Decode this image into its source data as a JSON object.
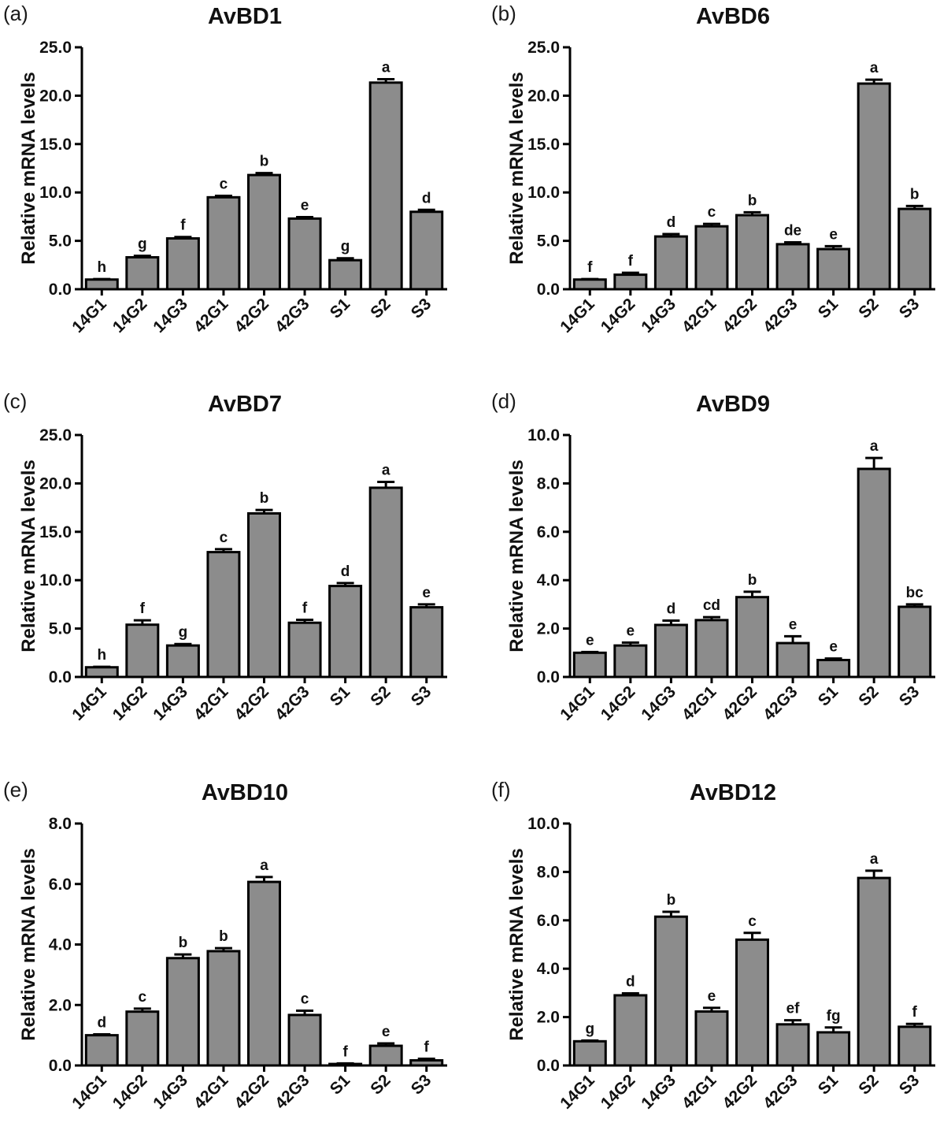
{
  "chart_data": [
    {
      "panel": "(a)",
      "type": "bar",
      "title": "AvBD1",
      "ylabel": "Relative mRNA levels",
      "xlabel": "",
      "categories": [
        "14G1",
        "14G2",
        "14G3",
        "42G1",
        "42G2",
        "42G3",
        "S1",
        "S2",
        "S3"
      ],
      "values": [
        1.0,
        3.3,
        5.25,
        9.5,
        11.8,
        7.3,
        3.0,
        21.35,
        8.0
      ],
      "errors": [
        0.05,
        0.15,
        0.15,
        0.15,
        0.2,
        0.15,
        0.2,
        0.35,
        0.2
      ],
      "labels": [
        "h",
        "g",
        "f",
        "c",
        "b",
        "e",
        "g",
        "a",
        "d"
      ],
      "ylim": [
        0,
        25
      ],
      "yticks": [
        "0.0",
        "5.0",
        "10.0",
        "15.0",
        "20.0",
        "25.0"
      ],
      "bar_color": "#8c8c8c"
    },
    {
      "panel": "(b)",
      "type": "bar",
      "title": "AvBD6",
      "ylabel": "Relative mRNA levels",
      "xlabel": "",
      "categories": [
        "14G1",
        "14G2",
        "14G3",
        "42G1",
        "42G2",
        "42G3",
        "S1",
        "S2",
        "S3"
      ],
      "values": [
        1.0,
        1.5,
        5.45,
        6.5,
        7.65,
        4.65,
        4.15,
        21.25,
        8.3
      ],
      "errors": [
        0.05,
        0.2,
        0.25,
        0.25,
        0.3,
        0.2,
        0.3,
        0.4,
        0.3
      ],
      "labels": [
        "f",
        "f",
        "d",
        "c",
        "b",
        "de",
        "e",
        "a",
        "b"
      ],
      "ylim": [
        0,
        25
      ],
      "yticks": [
        "0.0",
        "5.0",
        "10.0",
        "15.0",
        "20.0",
        "25.0"
      ],
      "bar_color": "#8c8c8c"
    },
    {
      "panel": "(c)",
      "type": "bar",
      "title": "AvBD7",
      "ylabel": "Relative mRNA levels",
      "xlabel": "",
      "categories": [
        "14G1",
        "14G2",
        "14G3",
        "42G1",
        "42G2",
        "42G3",
        "S1",
        "S2",
        "S3"
      ],
      "values": [
        1.0,
        5.4,
        3.25,
        12.9,
        16.9,
        5.6,
        9.4,
        19.55,
        7.2
      ],
      "errors": [
        0.05,
        0.45,
        0.15,
        0.3,
        0.35,
        0.3,
        0.3,
        0.6,
        0.3
      ],
      "labels": [
        "h",
        "f",
        "g",
        "c",
        "b",
        "f",
        "d",
        "a",
        "e"
      ],
      "ylim": [
        0,
        25
      ],
      "yticks": [
        "0.0",
        "5.0",
        "10.0",
        "15.0",
        "20.0",
        "25.0"
      ],
      "bar_color": "#8c8c8c"
    },
    {
      "panel": "(d)",
      "type": "bar",
      "title": "AvBD9",
      "ylabel": "Relative mRNA levels",
      "xlabel": "",
      "categories": [
        "14G1",
        "14G2",
        "14G3",
        "42G1",
        "42G2",
        "42G3",
        "S1",
        "S2",
        "S3"
      ],
      "values": [
        1.0,
        1.3,
        2.15,
        2.35,
        3.3,
        1.4,
        0.7,
        8.6,
        2.9
      ],
      "errors": [
        0.03,
        0.12,
        0.18,
        0.12,
        0.22,
        0.28,
        0.06,
        0.45,
        0.1
      ],
      "labels": [
        "e",
        "e",
        "d",
        "cd",
        "b",
        "e",
        "e",
        "a",
        "bc"
      ],
      "ylim": [
        0,
        10
      ],
      "yticks": [
        "0.0",
        "2.0",
        "4.0",
        "6.0",
        "8.0",
        "10.0"
      ],
      "bar_color": "#8c8c8c"
    },
    {
      "panel": "(e)",
      "type": "bar",
      "title": "AvBD10",
      "ylabel": "Relative mRNA levels",
      "xlabel": "",
      "categories": [
        "14G1",
        "14G2",
        "14G3",
        "42G1",
        "42G2",
        "42G3",
        "S1",
        "S2",
        "S3"
      ],
      "values": [
        1.0,
        1.78,
        3.55,
        3.78,
        6.07,
        1.67,
        0.05,
        0.65,
        0.17
      ],
      "errors": [
        0.03,
        0.1,
        0.12,
        0.1,
        0.16,
        0.14,
        0.02,
        0.08,
        0.05
      ],
      "labels": [
        "d",
        "c",
        "b",
        "b",
        "a",
        "c",
        "f",
        "e",
        "f"
      ],
      "ylim": [
        0,
        8
      ],
      "yticks": [
        "0.0",
        "2.0",
        "4.0",
        "6.0",
        "8.0"
      ],
      "bar_color": "#8c8c8c"
    },
    {
      "panel": "(f)",
      "type": "bar",
      "title": "AvBD12",
      "ylabel": "Relative mRNA levels",
      "xlabel": "",
      "categories": [
        "14G1",
        "14G2",
        "14G3",
        "42G1",
        "42G2",
        "42G3",
        "S1",
        "S2",
        "S3"
      ],
      "values": [
        1.0,
        2.9,
        6.15,
        2.23,
        5.2,
        1.7,
        1.37,
        7.75,
        1.6
      ],
      "errors": [
        0.03,
        0.08,
        0.2,
        0.15,
        0.28,
        0.17,
        0.2,
        0.3,
        0.12
      ],
      "labels": [
        "g",
        "d",
        "b",
        "e",
        "c",
        "ef",
        "fg",
        "a",
        "f"
      ],
      "ylim": [
        0,
        10
      ],
      "yticks": [
        "0.0",
        "2.0",
        "4.0",
        "6.0",
        "8.0",
        "10.0"
      ],
      "bar_color": "#8c8c8c"
    }
  ]
}
